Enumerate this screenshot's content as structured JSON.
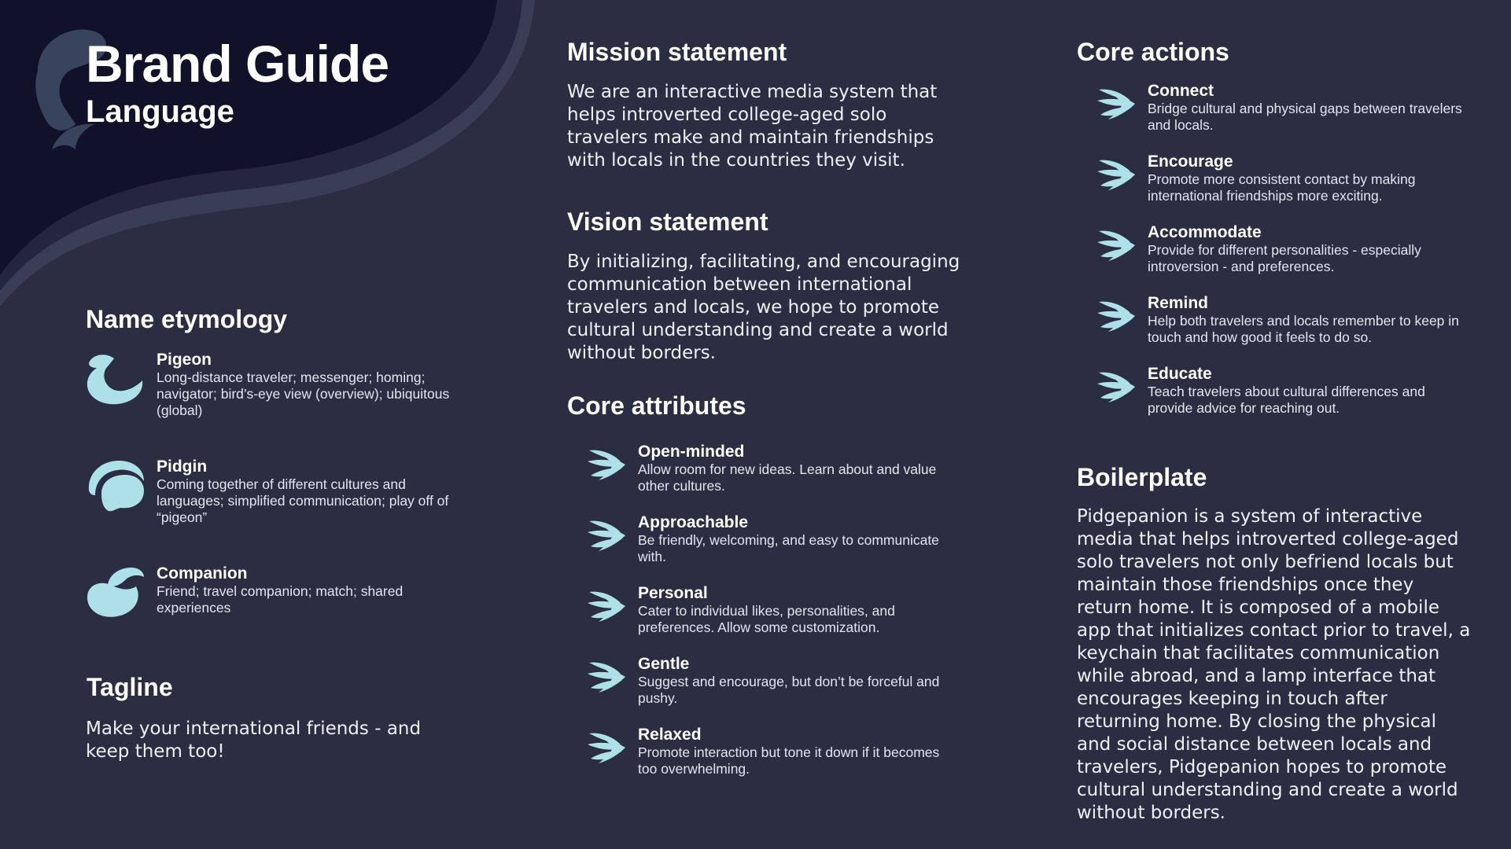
{
  "header": {
    "title": "Brand Guide",
    "subtitle": "Language"
  },
  "colors": {
    "background": "#2b2d42",
    "hero": "#11122a",
    "accent": "#aee0e8",
    "text": "#ffffff"
  },
  "etymology": {
    "heading": "Name etymology",
    "items": [
      {
        "icon": "pigeon-icon",
        "title": "Pigeon",
        "desc": "Long-distance traveler; messenger; homing; navigator; bird’s-eye view (overview); ubiquitous (global)"
      },
      {
        "icon": "pidgin-icon",
        "title": "Pidgin",
        "desc": "Coming together of different cultures and languages; simplified communication; play off of “pigeon”"
      },
      {
        "icon": "companion-icon",
        "title": "Companion",
        "desc": "Friend; travel companion; match; shared experiences"
      }
    ]
  },
  "tagline": {
    "heading": "Tagline",
    "text": "Make your international friends - and keep them too!"
  },
  "mission": {
    "heading": "Mission statement",
    "text": "We are an interactive media system that helps introverted college-aged solo travelers make and maintain friendships with locals in the countries they visit."
  },
  "vision": {
    "heading": "Vision statement",
    "text": "By initializing, facilitating, and encouraging communication between international travelers and locals, we hope to promote cultural understanding and create a world without borders."
  },
  "attributes": {
    "heading": "Core attributes",
    "items": [
      {
        "title": "Open-minded",
        "desc": "Allow room for new ideas. Learn about and value other cultures."
      },
      {
        "title": "Approachable",
        "desc": "Be friendly, welcoming, and easy to communicate with."
      },
      {
        "title": "Personal",
        "desc": "Cater to individual likes, personalities, and preferences. Allow some customization."
      },
      {
        "title": "Gentle",
        "desc": "Suggest and encourage, but don’t be forceful and pushy."
      },
      {
        "title": "Relaxed",
        "desc": "Promote interaction but tone it down if it becomes too overwhelming."
      }
    ]
  },
  "actions": {
    "heading": "Core actions",
    "items": [
      {
        "title": "Connect",
        "desc": "Bridge cultural and physical gaps between travelers and locals."
      },
      {
        "title": "Encourage",
        "desc": "Promote more consistent contact by making international friendships more exciting."
      },
      {
        "title": "Accommodate",
        "desc": "Provide for different personalities - especially introversion - and preferences."
      },
      {
        "title": "Remind",
        "desc": "Help both travelers and locals remember to keep in touch and how good it feels to do so."
      },
      {
        "title": "Educate",
        "desc": "Teach travelers about cultural differences and provide advice for reaching out."
      }
    ]
  },
  "boilerplate": {
    "heading": "Boilerplate",
    "text": "Pidgepanion is a system of interactive media that helps introverted college-aged solo travelers not only befriend locals but maintain those friendships once they return home. It is composed of a mobile app that initializes contact prior to travel, a keychain that facilitates communication while abroad, and a lamp interface that encourages keeping in touch after returning home. By closing the physical and social distance between locals and travelers, Pidgepanion hopes to promote cultural understanding and create a world without borders."
  }
}
